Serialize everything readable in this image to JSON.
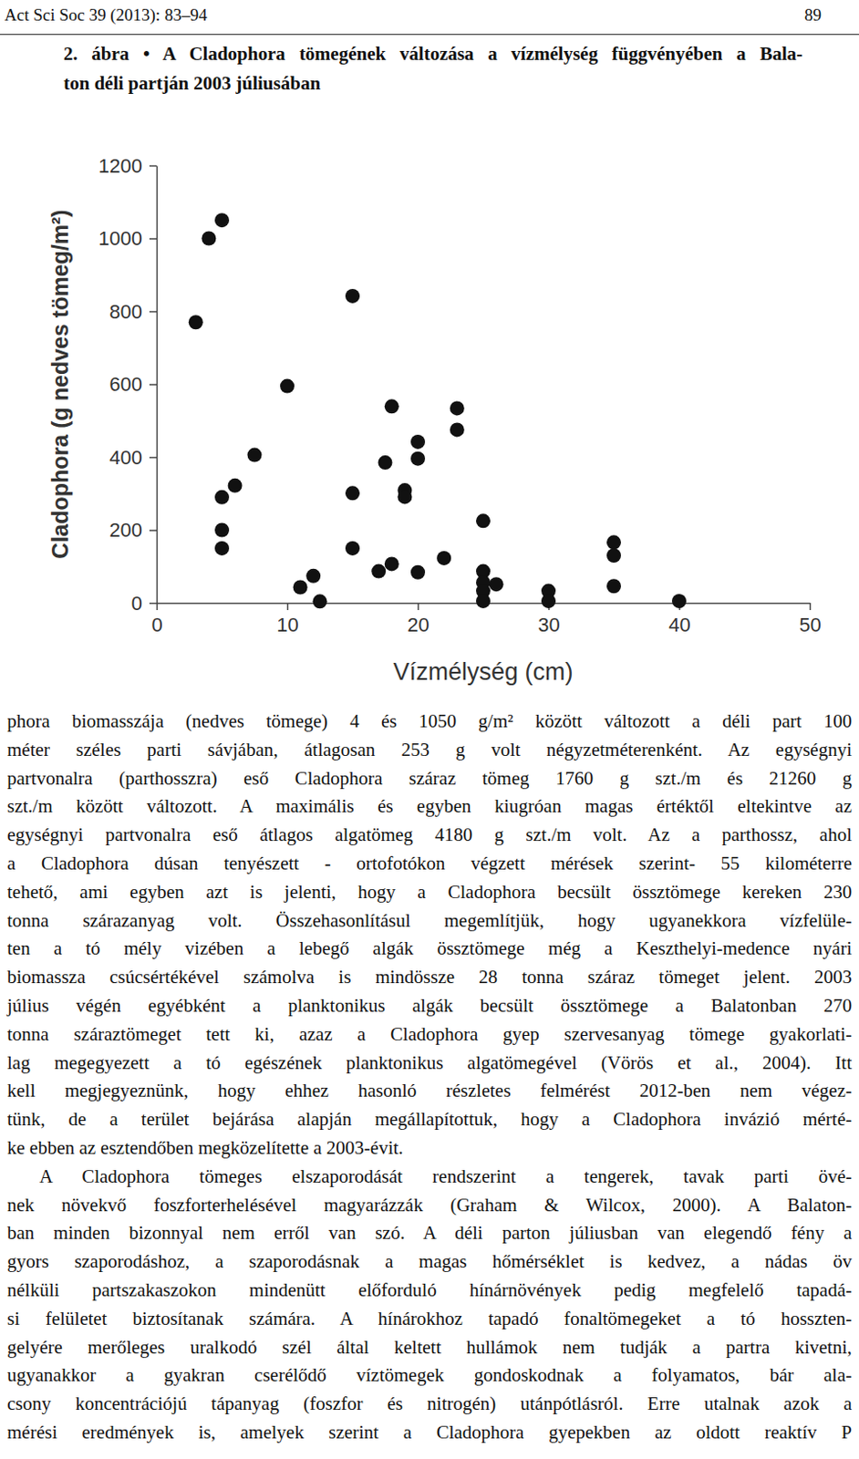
{
  "header": {
    "left": "Act Sci Soc 39 (2013): 83–94",
    "right": "89"
  },
  "caption": [
    "2. ábra • A Cladophora tömegének változása a vízmélység függvényében a Bala-",
    "ton déli partján 2003 júliusában"
  ],
  "chart_data": {
    "type": "scatter",
    "xlabel": "Vízmélység (cm)",
    "ylabel": "Cladophora (g nedves tömeg/m²)",
    "x": [
      3,
      4,
      5,
      5,
      5,
      5,
      6,
      7.5,
      10,
      11,
      12,
      12.5,
      15,
      15,
      15,
      17,
      17.5,
      18,
      18,
      19,
      19,
      20,
      20,
      20,
      22,
      23,
      23,
      25,
      25,
      25,
      25,
      25,
      26,
      30,
      30,
      35,
      35,
      35,
      40
    ],
    "values": [
      770,
      1000,
      1050,
      290,
      200,
      150,
      322,
      406,
      595,
      43,
      74,
      4,
      842,
      301,
      150,
      87,
      385,
      107,
      539,
      309,
      291,
      84,
      396,
      442,
      123,
      534,
      475,
      225,
      87,
      56,
      33,
      5,
      51,
      33,
      5,
      166,
      130,
      46,
      5
    ],
    "color": "#111111",
    "marker": "circle",
    "grid": false,
    "xlim": [
      0,
      50
    ],
    "ylim": [
      0,
      1200
    ],
    "xticks": [
      0,
      10,
      20,
      30,
      40,
      50
    ],
    "yticks": [
      0,
      200,
      400,
      600,
      800,
      1000,
      1200
    ]
  },
  "body": {
    "paragraphs": [
      [
        "phora biomasszája (nedves tömege) 4 és 1050 g/m² között változott a déli part 100",
        "méter széles parti sávjában, átlagosan 253 g volt négyzetméterenként. Az egységnyi",
        "partvonalra (parthosszra) eső Cladophora száraz tömeg 1760 g szt./m és 21260 g",
        "szt./m között változott. A maximális és egyben kiugróan magas értéktől eltekintve az",
        "egységnyi partvonalra eső átlagos algatömeg 4180 g szt./m volt. Az a parthossz, ahol",
        "a Cladophora dúsan tenyészett - ortofotókon végzett mérések szerint- 55 kilométerre",
        "tehető, ami egyben azt is jelenti, hogy a Cladophora becsült össztömege kereken 230",
        "tonna szárazanyag volt. Összehasonlításul megemlítjük, hogy ugyanekkora vízfelüle-",
        "ten a tó mély vizében a lebegő algák össztömege még a Keszthelyi-medence nyári",
        "biomassza csúcsértékével számolva is mindössze 28 tonna száraz tömeget jelent. 2003",
        "július végén egyébként a planktonikus algák becsült össztömege a Balatonban 270",
        "tonna száraztömeget tett ki, azaz a Cladophora gyep szervesanyag tömege gyakorlati-",
        "lag megegyezett a tó egészének planktonikus algatömegével (Vörös et al., 2004). Itt",
        "kell megjegyeznünk, hogy ehhez hasonló részletes felmérést 2012-ben nem végez-",
        "tünk, de a terület bejárása alapján megállapítottuk, hogy a Cladophora invázió mérté-",
        "ke ebben az esztendőben megközelítette a 2003-évit."
      ],
      [
        "A Cladophora tömeges elszaporodását rendszerint a tengerek, tavak parti övé-",
        "nek növekvő foszforterhelésével magyarázzák (Graham & Wilcox, 2000). A Balaton-",
        "ban minden bizonnyal nem erről van szó. A déli parton júliusban van elegendő fény a",
        "gyors szaporodáshoz, a szaporodásnak a magas hőmérséklet is kedvez, a nádas öv",
        "nélküli partszakaszokon mindenütt előforduló hínárnövények pedig megfelelő tapadá-",
        "si felületet biztosítanak számára. A hínárokhoz tapadó fonaltömegeket a tó hosszten-",
        "gelyére merőleges uralkodó szél által keltett hullámok nem tudják a partra kivetni,",
        "ugyanakkor a gyakran cserélődő víztömegek gondoskodnak a folyamatos, bár ala-",
        "csony koncentrációjú tápanyag (foszfor és nitrogén) utánpótlásról. Erre utalnak azok a",
        "mérési eredmények is, amelyek szerint a Cladophora gyepekben az oldott reaktív P"
      ]
    ]
  }
}
